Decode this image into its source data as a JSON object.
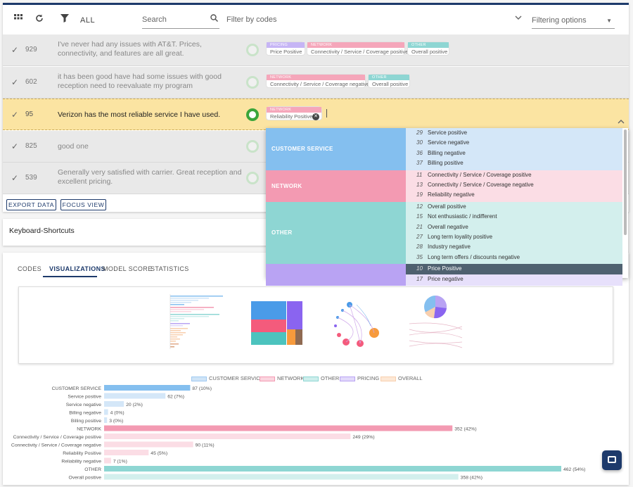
{
  "toolbar": {
    "all_label": "ALL",
    "search_placeholder": "Search",
    "filter_codes_label": "Filter by codes",
    "filtering_options_label": "Filtering options"
  },
  "colors": {
    "customer_service": "#84bfef",
    "network": "#f39ab2",
    "other": "#8ed6d3",
    "pricing": "#b9a3f3",
    "overall": "#f8cfae",
    "selected_row": "#fbe4a2",
    "accent": "#1d3a6b"
  },
  "rows": [
    {
      "num": "929",
      "text": "I've never had any issues with AT&T. Prices, connectivity, and features are all great.",
      "tags": [
        {
          "cat": "PRICING",
          "code": "Price Positive",
          "color": "pr"
        },
        {
          "cat": "NETWORK",
          "code": "Connectivity / Service / Coverage positive",
          "color": "nw"
        },
        {
          "cat": "OTHER",
          "code": "Overall positive",
          "color": "ot"
        }
      ]
    },
    {
      "num": "602",
      "text": "it has been good have had some issues with good reception need to reevaluate my program",
      "tags": [
        {
          "cat": "NETWORK",
          "code": "Connectivity / Service / Coverage negative",
          "color": "nw"
        },
        {
          "cat": "OTHER",
          "code": "Overall positive",
          "color": "ot"
        }
      ]
    },
    {
      "num": "95",
      "text": "Verizon has the most reliable service I have used.",
      "tags": [
        {
          "cat": "NETWORK",
          "code": "Reliability Positive",
          "color": "nw"
        }
      ]
    },
    {
      "num": "825",
      "text": "good one",
      "tags": []
    },
    {
      "num": "539",
      "text": "Generally very satisfied with carrier. Great reception and excellent pricing.",
      "tags": []
    }
  ],
  "buttons": {
    "export": "EXPORT DATA",
    "focus": "FOCUS VIEW"
  },
  "keyboard_shortcuts": "Keyboard-Shortcuts",
  "tabs": [
    "CODES",
    "VISUALIZATIONS",
    "MODEL SCORE",
    "STATISTICS"
  ],
  "dropdown": [
    {
      "cat": "CUSTOMER SERVICE",
      "color": "cs",
      "items": [
        {
          "n": "29",
          "label": "Service positive"
        },
        {
          "n": "30",
          "label": "Service negative"
        },
        {
          "n": "36",
          "label": "Billing negative"
        },
        {
          "n": "37",
          "label": "Billing positive"
        }
      ]
    },
    {
      "cat": "NETWORK",
      "color": "nw",
      "items": [
        {
          "n": "11",
          "label": "Connectivity / Service / Coverage positive"
        },
        {
          "n": "13",
          "label": "Connectivity / Service / Coverage negative"
        },
        {
          "n": "19",
          "label": "Reliability negative"
        }
      ]
    },
    {
      "cat": "OTHER",
      "color": "ot",
      "items": [
        {
          "n": "12",
          "label": "Overall positive"
        },
        {
          "n": "15",
          "label": "Not enthusiastic / indifferent"
        },
        {
          "n": "21",
          "label": "Overall negative"
        },
        {
          "n": "27",
          "label": "Long term loyality positive"
        },
        {
          "n": "28",
          "label": "Industry negative"
        },
        {
          "n": "35",
          "label": "Long term offers / discounts negative"
        }
      ]
    },
    {
      "cat": "",
      "color": "pr",
      "items": [
        {
          "n": "10",
          "label": "Price Positive",
          "highlight": true
        },
        {
          "n": "17",
          "label": "Price negative"
        }
      ]
    }
  ],
  "chart_data": {
    "type": "bar",
    "orientation": "horizontal",
    "legend": [
      "CUSTOMER SERVICE",
      "NETWORK",
      "OTHER",
      "PRICING",
      "OVERALL"
    ],
    "legend_position": "top",
    "categories": [
      "CUSTOMER SERVICE",
      "Service positive",
      "Service negative",
      "Billing negative",
      "Billing positive",
      "NETWORK",
      "Connectivity / Service / Coverage positive",
      "Connectivity / Service / Coverage negative",
      "Reliability Positive",
      "Reliability negative",
      "OTHER",
      "Overall positive"
    ],
    "values": [
      87,
      62,
      20,
      4,
      3,
      352,
      249,
      90,
      45,
      7,
      462,
      358
    ],
    "labels": [
      "87 (10%)",
      "62 (7%)",
      "20 (2%)",
      "4 (0%)",
      "3 (0%)",
      "352 (42%)",
      "249 (29%)",
      "90 (11%)",
      "45 (5%)",
      "7 (1%)",
      "462 (54%)",
      "358 (42%)"
    ],
    "group": [
      "cs",
      "cs",
      "cs",
      "cs",
      "cs",
      "nw",
      "nw",
      "nw",
      "nw",
      "nw",
      "ot",
      "ot"
    ],
    "is_header": [
      true,
      false,
      false,
      false,
      false,
      true,
      false,
      false,
      false,
      false,
      true,
      false
    ]
  }
}
